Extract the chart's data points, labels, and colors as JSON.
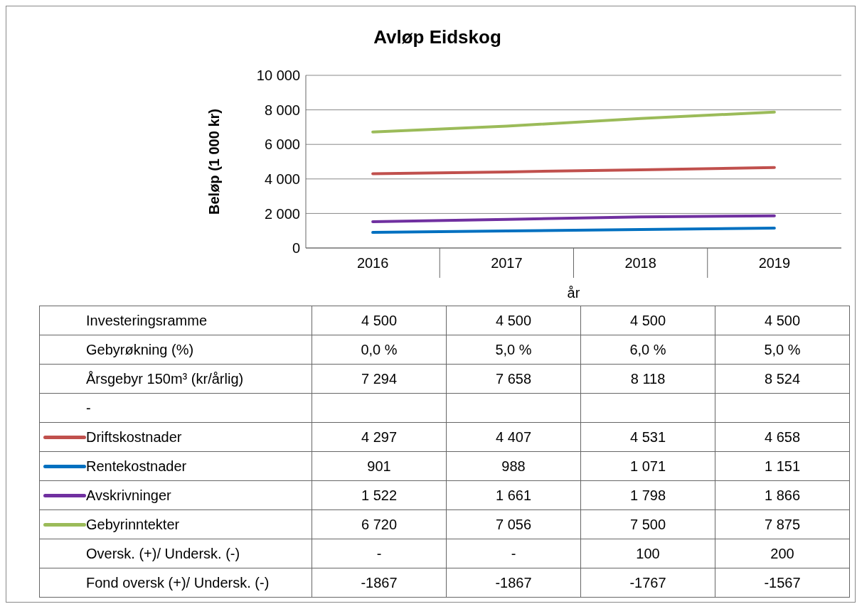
{
  "chart_data": {
    "type": "line",
    "title": "Avløp Eidskog",
    "xlabel": "år",
    "ylabel": "Beløp (1 000 kr)",
    "categories": [
      "2016",
      "2017",
      "2018",
      "2019"
    ],
    "ylim": [
      0,
      10000
    ],
    "yticks": [
      0,
      {
        "value": 2000,
        "label": "2 000"
      },
      {
        "value": 4000,
        "label": "4 000"
      },
      {
        "value": 6000,
        "label": "6 000"
      },
      {
        "value": 8000,
        "label": "8 000"
      },
      {
        "value": 10000,
        "label": "10 000"
      }
    ],
    "grid": "y",
    "legend": "bottom",
    "marker": "none",
    "line_style": "solid",
    "series": [
      {
        "name": "Driftskostnader",
        "color": "#c0504d",
        "values": [
          4297,
          4407,
          4531,
          4658
        ],
        "value_labels": [
          "4 297",
          "4 407",
          "4 531",
          "4 658"
        ]
      },
      {
        "name": "Rentekostnader",
        "color": "#0070c0",
        "values": [
          901,
          988,
          1071,
          1151
        ],
        "value_labels": [
          "901",
          "988",
          "1 071",
          "1 151"
        ]
      },
      {
        "name": "Avskrivninger",
        "color": "#7030a0",
        "values": [
          1522,
          1661,
          1798,
          1866
        ],
        "value_labels": [
          "1 522",
          "1 661",
          "1 798",
          "1 866"
        ]
      },
      {
        "name": "Gebyrinntekter",
        "color": "#9bbb59",
        "values": [
          6720,
          7056,
          7500,
          7875
        ],
        "value_labels": [
          "6 720",
          "7 056",
          "7 500",
          "7 875"
        ]
      }
    ],
    "annotations": [
      "Investeringsramme",
      "4 500",
      "4 500",
      "4 500",
      "4 500",
      "Gebyrøkning (%)",
      "0,0 %",
      "5,0 %",
      "6,0 %",
      "5,0 %",
      "Årsgebyr 150m³ (kr/årlig)",
      "7 294",
      "7 658",
      "8 118",
      "8 524",
      "-",
      null,
      null,
      null,
      null,
      "Oversk. (+)/ Undersk. (-)",
      "-",
      "-",
      "100",
      "200",
      "Fond oversk (+)/ Undersk. (-)",
      "-1867",
      "-1867",
      "-1767",
      "-1567"
    ]
  }
}
